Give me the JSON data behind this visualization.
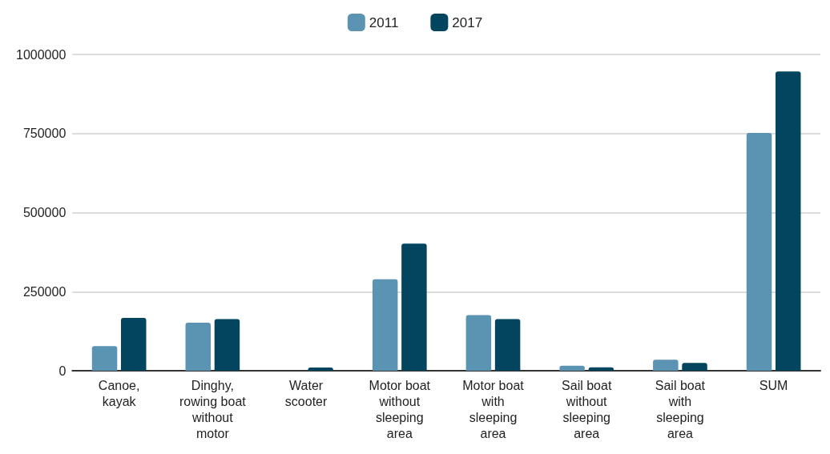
{
  "chart_data": {
    "type": "bar",
    "categories": [
      "Canoe, kayak",
      "Dinghy, rowing boat without motor",
      "Water scooter",
      "Motor boat without sleeping area",
      "Motor boat with sleeping area",
      "Sail boat without sleeping area",
      "Sail boat with sleeping area",
      "SUM"
    ],
    "series": [
      {
        "name": "2011",
        "color": "#5b93b3",
        "values": [
          78000,
          152000,
          0,
          289000,
          176000,
          16000,
          35000,
          752000
        ]
      },
      {
        "name": "2017",
        "color": "#03455f",
        "values": [
          167000,
          163000,
          10000,
          402000,
          163000,
          11000,
          25000,
          946000
        ]
      }
    ],
    "ylim": [
      0,
      1000000
    ],
    "yticks": [
      0,
      250000,
      500000,
      750000,
      1000000
    ],
    "grid": "y",
    "legend": "top"
  }
}
